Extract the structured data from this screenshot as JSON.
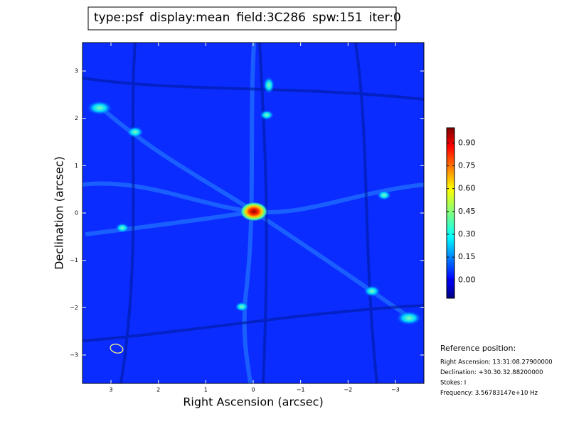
{
  "chart_data": {
    "type": "image",
    "title": [
      {
        "text": "type:psf",
        "color": "#000000"
      },
      {
        "text": "display:mean",
        "color": "#ff0000"
      },
      {
        "text": "field:3C286",
        "color": "#000000"
      },
      {
        "text": "spw:151",
        "color": "#000000"
      },
      {
        "text": "iter:0",
        "color": "#000000"
      }
    ],
    "xlabel": "Right Ascension (arcsec)",
    "ylabel": "Declination (arcsec)",
    "xlim": [
      3.6,
      -3.6
    ],
    "xticks": [
      3,
      2,
      1,
      0,
      {
        "value": -1,
        "label": "−1"
      },
      {
        "value": -2,
        "label": "−2"
      },
      {
        "value": -3,
        "label": "−3"
      }
    ],
    "ylim": [
      -3.6,
      3.6
    ],
    "yticks": [
      {
        "value": -3,
        "label": "−3"
      },
      {
        "value": -2,
        "label": "−2"
      },
      {
        "value": -1,
        "label": "−1"
      },
      0,
      1,
      2,
      3
    ],
    "colormap": "jet",
    "clim": [
      -0.12,
      1.0
    ],
    "cticks": [
      {
        "value": 0,
        "label": "0.00"
      },
      {
        "value": 0.15,
        "label": "0.15"
      },
      {
        "value": 0.3,
        "label": "0.30"
      },
      {
        "value": 0.45,
        "label": "0.45"
      },
      {
        "value": 0.6,
        "label": "0.60"
      },
      {
        "value": 0.75,
        "label": "0.75"
      },
      {
        "value": 0.9,
        "label": "0.90"
      }
    ],
    "reference": {
      "heading": "Reference position:",
      "lines": [
        "Right Ascension: 13:31:08.27900000",
        "Declination: +30.30.32.88200000",
        "Stokes: I",
        "Frequency: 3.56783147e+10 Hz"
      ]
    }
  }
}
